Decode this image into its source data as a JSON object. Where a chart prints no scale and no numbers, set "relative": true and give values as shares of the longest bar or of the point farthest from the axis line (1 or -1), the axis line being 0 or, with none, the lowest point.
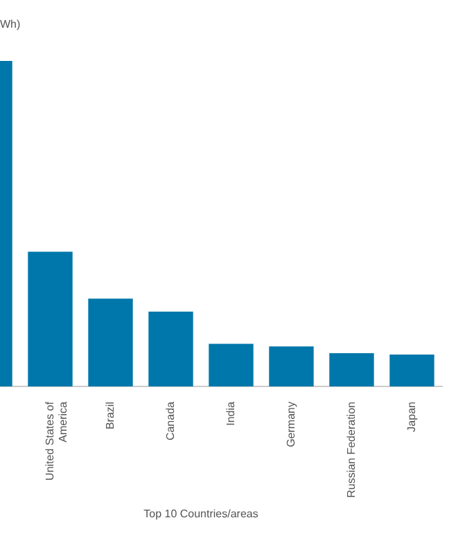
{
  "chart_data": {
    "type": "bar",
    "title": "Wh)",
    "xlabel": "Top 10 Countries/areas",
    "relative": true,
    "color": "#0077aa",
    "grid": false,
    "legend": false,
    "categories": [
      null,
      "United States of America",
      "Brazil",
      "Canada",
      "India",
      "Germany",
      "Russian Federation",
      "Japan"
    ],
    "values": [
      1,
      0.414,
      0.27,
      0.23,
      0.131,
      0.123,
      0.102,
      0.098
    ]
  }
}
